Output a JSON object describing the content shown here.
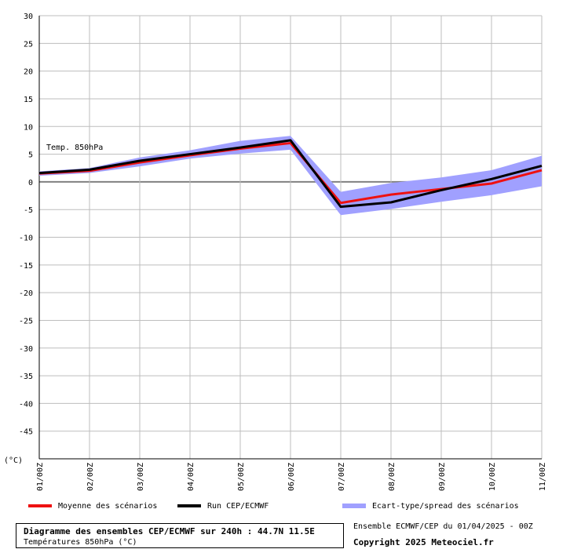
{
  "chart_data": {
    "type": "line",
    "annotation": "Temp. 850hPa",
    "unit_label": "(°C)",
    "x": [
      "01/00Z",
      "02/00Z",
      "03/00Z",
      "04/00Z",
      "05/00Z",
      "06/00Z",
      "07/00Z",
      "08/00Z",
      "09/00Z",
      "10/00Z",
      "11/00Z"
    ],
    "ylim": [
      -50,
      30
    ],
    "yticks": [
      30,
      25,
      20,
      15,
      10,
      5,
      0,
      -5,
      -10,
      -15,
      -20,
      -25,
      -30,
      -35,
      -40,
      -45
    ],
    "grid": true,
    "series": [
      {
        "name": "Moyenne des scénarios",
        "color": "#ee1111",
        "values": [
          1.5,
          2.0,
          3.5,
          4.8,
          6.0,
          7.0,
          -3.8,
          -2.3,
          -1.3,
          -0.3,
          2.1
        ]
      },
      {
        "name": "Run CEP/ECMWF",
        "color": "#000000",
        "values": [
          1.6,
          2.2,
          3.8,
          5.0,
          6.2,
          7.5,
          -4.5,
          -3.7,
          -1.5,
          0.5,
          2.9
        ]
      }
    ],
    "band": {
      "name": "Ecart-type/spread des scénarios",
      "color": "#a0a0ff",
      "upper": [
        1.9,
        2.5,
        4.4,
        5.7,
        7.4,
        8.3,
        -1.8,
        -0.2,
        0.8,
        2.1,
        4.7
      ],
      "lower": [
        1.1,
        1.6,
        2.8,
        4.2,
        5.1,
        5.8,
        -6.0,
        -4.9,
        -3.6,
        -2.4,
        -0.8
      ]
    }
  },
  "legend": {
    "mean_label": "Moyenne des scénarios",
    "run_label": "Run CEP/ECMWF",
    "spread_label": "Ecart-type/spread des scénarios"
  },
  "footer": {
    "title": "Diagramme des ensembles CEP/ECMWF sur 240h : 44.7N 11.5E",
    "subtitle": "Températures 850hPa (°C)",
    "ensemble_info": "Ensemble ECMWF/CEP du 01/04/2025 - 00Z",
    "copyright": "Copyright 2025 Meteociel.fr"
  }
}
